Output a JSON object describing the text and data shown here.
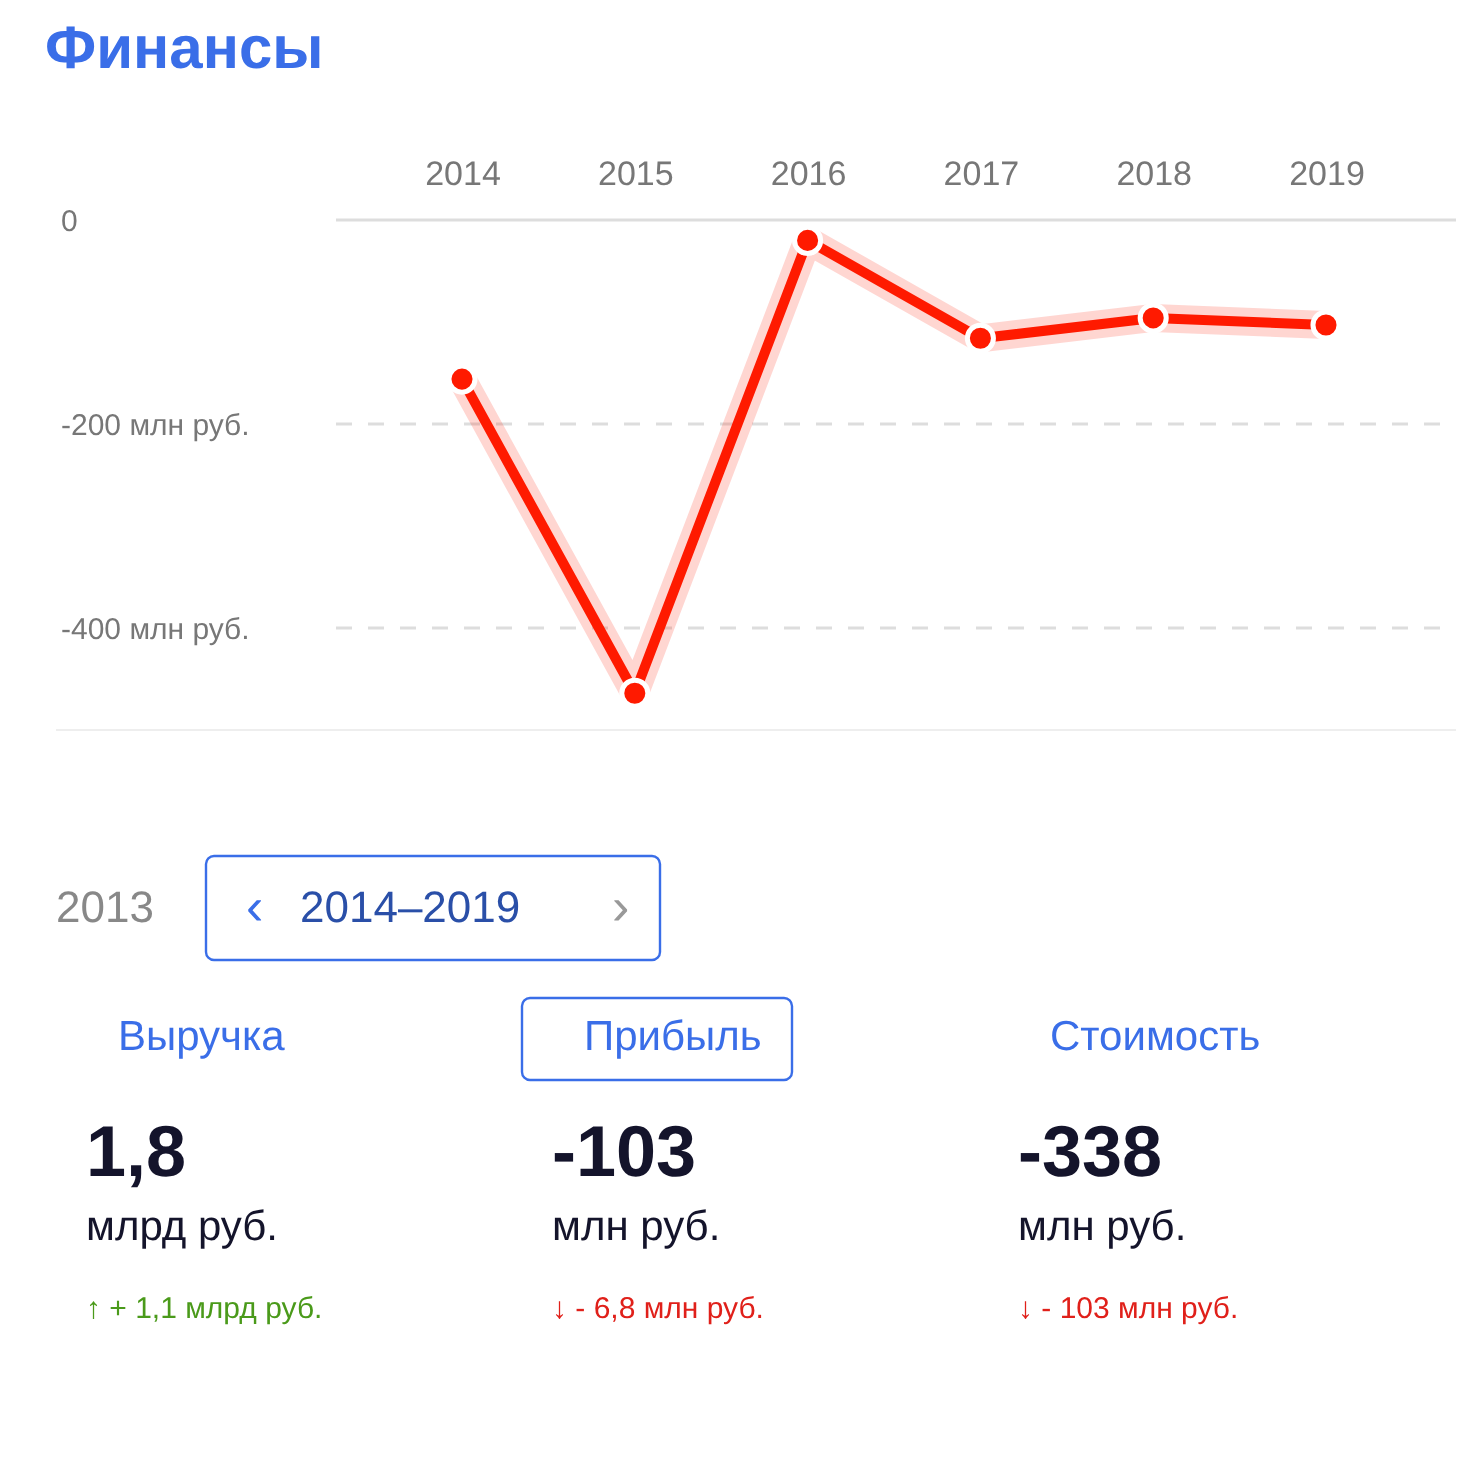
{
  "chart_data": [
    {
      "type": "line",
      "title": "Финансы",
      "categories": [
        "2014",
        "2015",
        "2016",
        "2017",
        "2018",
        "2019"
      ],
      "series": [
        {
          "color": "#ff1a00",
          "values": [
            -156,
            -464,
            -20,
            -116,
            -96,
            -103
          ]
        }
      ],
      "ylim": [
        -500,
        0
      ],
      "yticks": [
        0,
        {
          "value": -200,
          "label": "-200 млн руб."
        },
        {
          "value": -400,
          "label": "-400 млн руб."
        }
      ],
      "grid": "y",
      "marker": "circle",
      "line_style": "solid"
    },
    {
      "type": "other",
      "annotations": [
        "2013",
        "‹",
        "2014–2019",
        "›",
        "Выручка",
        "1,8",
        "млрд руб.",
        "↑ + 1,1 млрд руб.",
        "Прибыль",
        "-103",
        "млн руб.",
        "↓ - 6,8 млн руб.",
        "Стоимость",
        "-338",
        "млн руб.",
        "↓ - 103 млн руб."
      ]
    }
  ]
}
